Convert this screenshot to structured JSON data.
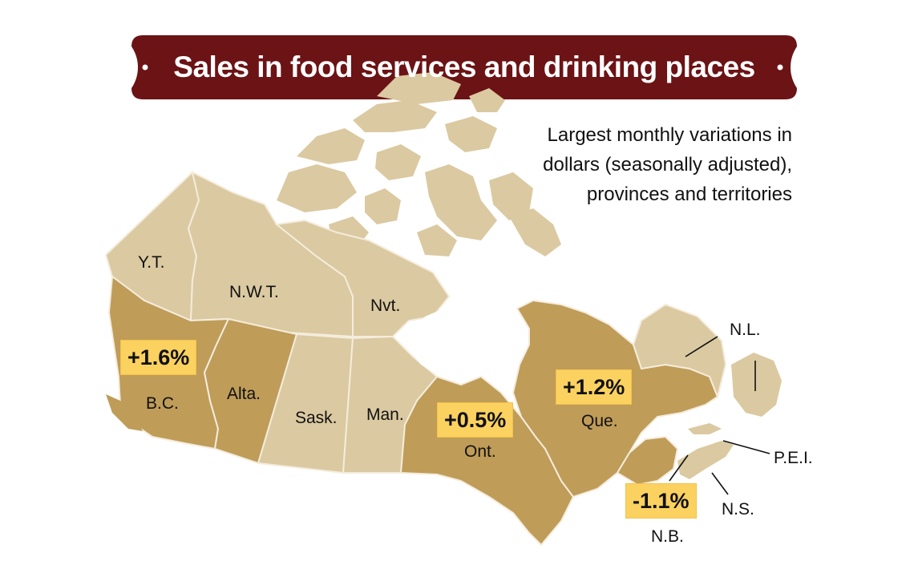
{
  "title": "Sales in food services and drinking places",
  "subtitle": "Largest monthly variations in dollars (seasonally adjusted), provinces and territories",
  "colors": {
    "banner": "#6b1315",
    "highlight_region": "#bf9c58",
    "other_region": "#dbc9a1",
    "badge": "#fbd160",
    "border": "#f4ecdc"
  },
  "regions": {
    "yt": "Y.T.",
    "nwt": "N.W.T.",
    "nvt": "Nvt.",
    "bc": "B.C.",
    "alta": "Alta.",
    "sask": "Sask.",
    "man": "Man.",
    "ont": "Ont.",
    "que": "Que.",
    "nl": "N.L.",
    "pei": "P.E.I.",
    "ns": "N.S.",
    "nb": "N.B."
  },
  "changes": {
    "bc": "+1.6%",
    "ont": "+0.5%",
    "que": "+1.2%",
    "nb": "-1.1%"
  }
}
